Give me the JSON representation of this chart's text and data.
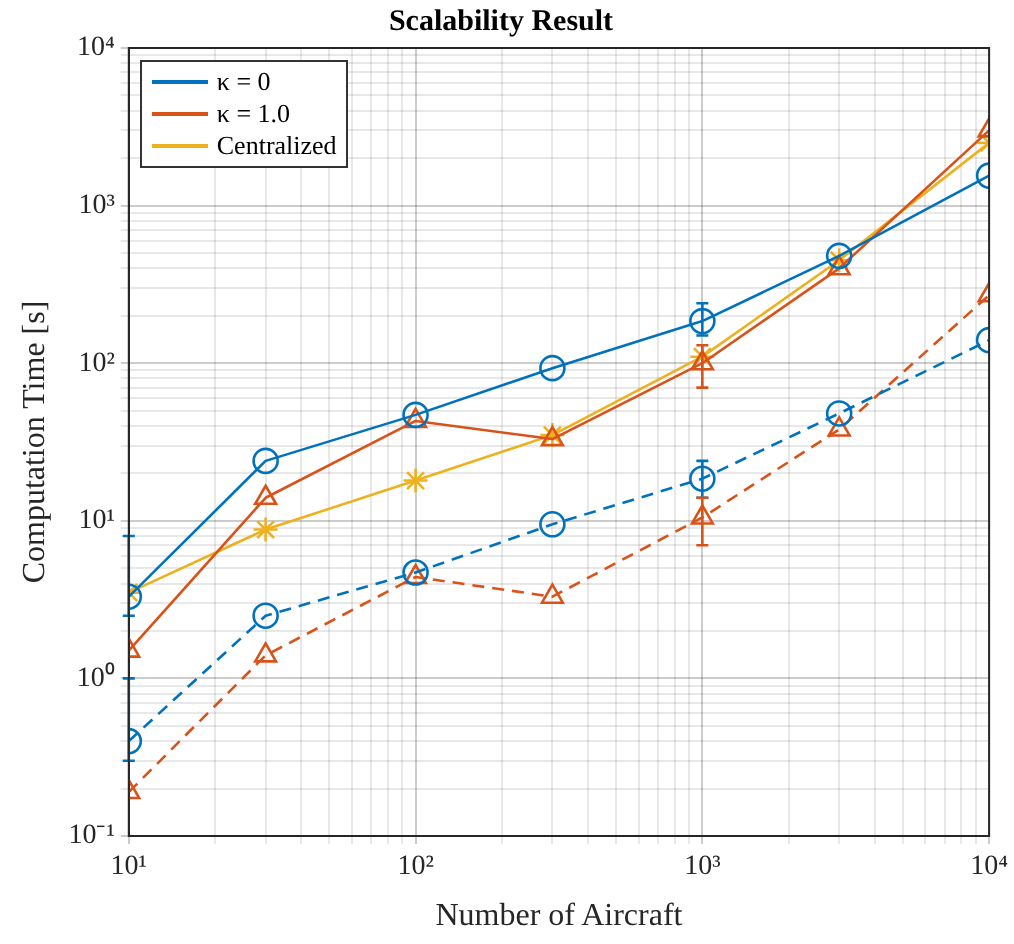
{
  "chart_data": {
    "type": "line",
    "title": "Scalability Result",
    "xlabel": "Number of Aircraft",
    "ylabel": "Computation Time [s]",
    "log": "xy",
    "grid": true,
    "legend": "top left",
    "xlim": [
      10,
      10000
    ],
    "ylim": [
      0.1,
      10000
    ],
    "xticks": [
      {
        "value": 10,
        "label": "10¹"
      },
      {
        "value": 20,
        "label": null
      },
      {
        "value": 30,
        "label": null
      },
      {
        "value": 40,
        "label": null
      },
      {
        "value": 50,
        "label": null
      },
      {
        "value": 60,
        "label": null
      },
      {
        "value": 70,
        "label": null
      },
      {
        "value": 80,
        "label": null
      },
      {
        "value": 90,
        "label": null
      },
      {
        "value": 100,
        "label": "10²"
      },
      {
        "value": 200,
        "label": null
      },
      {
        "value": 300,
        "label": null
      },
      {
        "value": 400,
        "label": null
      },
      {
        "value": 500,
        "label": null
      },
      {
        "value": 600,
        "label": null
      },
      {
        "value": 700,
        "label": null
      },
      {
        "value": 800,
        "label": null
      },
      {
        "value": 900,
        "label": null
      },
      {
        "value": 1000,
        "label": "10³"
      },
      {
        "value": 2000,
        "label": null
      },
      {
        "value": 3000,
        "label": null
      },
      {
        "value": 4000,
        "label": null
      },
      {
        "value": 5000,
        "label": null
      },
      {
        "value": 6000,
        "label": null
      },
      {
        "value": 7000,
        "label": null
      },
      {
        "value": 8000,
        "label": null
      },
      {
        "value": 9000,
        "label": null
      },
      {
        "value": 10000,
        "label": "10⁴"
      }
    ],
    "yticks": [
      {
        "value": 0.1,
        "label": "10⁻¹"
      },
      {
        "value": 0.2,
        "label": null
      },
      {
        "value": 0.3,
        "label": null
      },
      {
        "value": 0.4,
        "label": null
      },
      {
        "value": 0.5,
        "label": null
      },
      {
        "value": 0.6,
        "label": null
      },
      {
        "value": 0.7,
        "label": null
      },
      {
        "value": 0.8,
        "label": null
      },
      {
        "value": 0.9,
        "label": null
      },
      {
        "value": 1,
        "label": "10⁰"
      },
      {
        "value": 2,
        "label": null
      },
      {
        "value": 3,
        "label": null
      },
      {
        "value": 4,
        "label": null
      },
      {
        "value": 5,
        "label": null
      },
      {
        "value": 6,
        "label": null
      },
      {
        "value": 7,
        "label": null
      },
      {
        "value": 8,
        "label": null
      },
      {
        "value": 9,
        "label": null
      },
      {
        "value": 10,
        "label": "10¹"
      },
      {
        "value": 20,
        "label": null
      },
      {
        "value": 30,
        "label": null
      },
      {
        "value": 40,
        "label": null
      },
      {
        "value": 50,
        "label": null
      },
      {
        "value": 60,
        "label": null
      },
      {
        "value": 70,
        "label": null
      },
      {
        "value": 80,
        "label": null
      },
      {
        "value": 90,
        "label": null
      },
      {
        "value": 100,
        "label": "10²"
      },
      {
        "value": 200,
        "label": null
      },
      {
        "value": 300,
        "label": null
      },
      {
        "value": 400,
        "label": null
      },
      {
        "value": 500,
        "label": null
      },
      {
        "value": 600,
        "label": null
      },
      {
        "value": 700,
        "label": null
      },
      {
        "value": 800,
        "label": null
      },
      {
        "value": 900,
        "label": null
      },
      {
        "value": 1000,
        "label": "10³"
      },
      {
        "value": 2000,
        "label": null
      },
      {
        "value": 3000,
        "label": null
      },
      {
        "value": 4000,
        "label": null
      },
      {
        "value": 5000,
        "label": null
      },
      {
        "value": 6000,
        "label": null
      },
      {
        "value": 7000,
        "label": null
      },
      {
        "value": 8000,
        "label": null
      },
      {
        "value": 9000,
        "label": null
      },
      {
        "value": 10000,
        "label": "10⁴"
      }
    ],
    "x": [
      10,
      30,
      100,
      300,
      1000,
      3000,
      10000
    ],
    "series": [
      {
        "name": "κ = 0",
        "color": "#0072bd",
        "marker": "circle",
        "line_style": "solid",
        "values": [
          3.3,
          24,
          47,
          93,
          185,
          480,
          1550
        ],
        "errors": [
          [
            2.5,
            8
          ],
          null,
          null,
          null,
          [
            150,
            240
          ],
          null,
          null
        ]
      },
      {
        "name": "κ = 1.0",
        "color": "#d95319",
        "marker": "triangle",
        "line_style": "solid",
        "values": [
          1.5,
          14,
          43,
          33,
          100,
          400,
          3000
        ],
        "errors": [
          null,
          null,
          null,
          null,
          [
            70,
            130
          ],
          null,
          null
        ]
      },
      {
        "name": "Centralized",
        "color": "#edb120",
        "marker": "cross",
        "line_style": "solid",
        "values": [
          3.5,
          8.8,
          18,
          35,
          110,
          450,
          2500
        ]
      },
      {
        "color": "#0072bd",
        "marker": "circle",
        "line_style": "dashed",
        "values": [
          0.4,
          2.5,
          4.7,
          9.5,
          18.5,
          48,
          140
        ],
        "errors": [
          [
            0.3,
            1
          ],
          null,
          null,
          null,
          [
            14,
            24
          ],
          null,
          null
        ]
      },
      {
        "color": "#d95319",
        "marker": "triangle",
        "line_style": "dashed",
        "values": [
          0.19,
          1.4,
          4.4,
          3.3,
          10.5,
          38,
          270
        ],
        "errors": [
          null,
          null,
          null,
          null,
          [
            7,
            14
          ],
          null,
          null
        ]
      }
    ]
  }
}
